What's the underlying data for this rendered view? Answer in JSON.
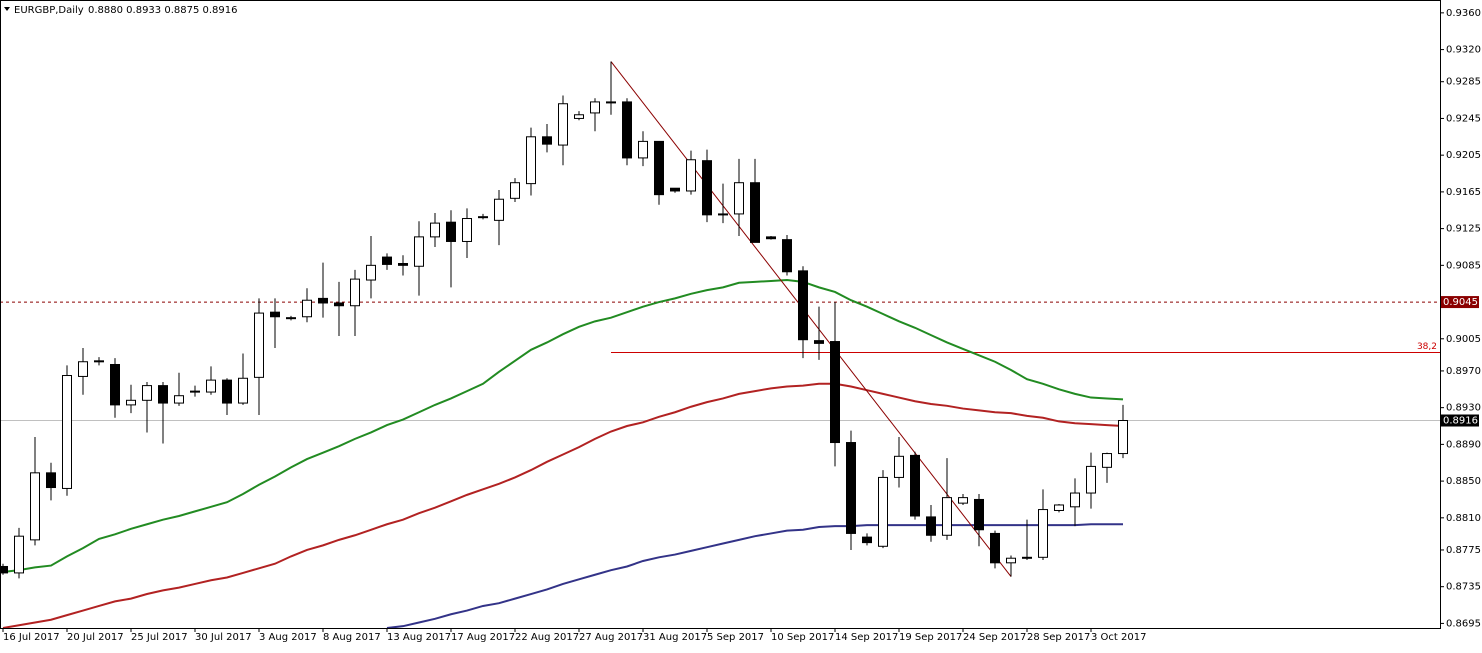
{
  "chart_data": {
    "type": "candlestick",
    "title": "EURGBP,Daily",
    "header_values": "0.8880 0.8933 0.8875 0.8916",
    "categories": [
      "16 Jul 2017",
      null,
      null,
      null,
      "20 Jul 2017",
      null,
      null,
      null,
      "25 Jul 2017",
      null,
      null,
      null,
      "30 Jul 2017",
      null,
      null,
      null,
      "3 Aug 2017",
      null,
      null,
      null,
      "8 Aug 2017",
      null,
      null,
      null,
      "13 Aug 2017",
      null,
      null,
      null,
      "17 Aug 2017",
      null,
      null,
      null,
      "22 Aug 2017",
      null,
      null,
      null,
      "27 Aug 2017",
      null,
      null,
      null,
      "31 Aug 2017",
      null,
      null,
      null,
      "5 Sep 2017",
      null,
      null,
      null,
      "10 Sep 2017",
      null,
      null,
      null,
      "14 Sep 2017",
      null,
      null,
      null,
      "19 Sep 2017",
      null,
      null,
      null,
      "24 Sep 2017",
      null,
      null,
      null,
      "28 Sep 2017",
      null,
      null,
      null,
      "3 Oct 2017",
      null,
      null
    ],
    "open": [
      0.8757,
      0.875,
      0.8786,
      0.8859,
      0.8842,
      0.8964,
      0.898,
      0.8977,
      0.8933,
      0.8938,
      0.8954,
      0.8935,
      0.8947,
      0.8947,
      0.896,
      0.8935,
      0.8963,
      0.9034,
      0.9028,
      0.9029,
      0.9049,
      0.9044,
      0.9041,
      0.9069,
      0.9094,
      0.9087,
      0.9084,
      0.9116,
      0.9132,
      0.9111,
      0.9137,
      0.9134,
      0.9158,
      0.9174,
      0.9225,
      0.9216,
      0.9245,
      0.9251,
      0.9263,
      0.9263,
      0.9202,
      0.922,
      0.9169,
      0.9166,
      0.9199,
      0.9141,
      0.9141,
      0.9175,
      0.9116,
      0.9113,
      0.9079,
      0.9003,
      0.9002,
      0.8892,
      0.8789,
      0.8779,
      0.8854,
      0.8878,
      0.8811,
      0.8791,
      0.8826,
      0.883,
      0.8793,
      0.8761,
      0.8766,
      0.8767,
      0.8818,
      0.8822,
      0.8837,
      0.8865,
      0.888
    ],
    "high": [
      0.876,
      0.8799,
      0.8898,
      0.887,
      0.8976,
      0.8995,
      0.8985,
      0.8984,
      0.8955,
      0.8958,
      0.8958,
      0.8968,
      0.8954,
      0.8975,
      0.8962,
      0.8989,
      0.9049,
      0.9049,
      0.903,
      0.906,
      0.9088,
      0.9067,
      0.908,
      0.9117,
      0.9098,
      0.9096,
      0.9133,
      0.9142,
      0.9145,
      0.9147,
      0.9141,
      0.9167,
      0.918,
      0.9235,
      0.9239,
      0.927,
      0.9253,
      0.9267,
      0.9307,
      0.9267,
      0.9231,
      0.922,
      0.9169,
      0.921,
      0.9211,
      0.9174,
      0.9201,
      0.9201,
      0.9117,
      0.9118,
      0.9084,
      0.904,
      0.9045,
      0.8905,
      0.8793,
      0.8862,
      0.8898,
      0.8882,
      0.8824,
      0.8875,
      0.8836,
      0.8836,
      0.8796,
      0.8769,
      0.8808,
      0.8841,
      0.8825,
      0.8853,
      0.8881,
      0.8881,
      0.8933
    ],
    "low": [
      0.8748,
      0.8744,
      0.878,
      0.8829,
      0.8834,
      0.8944,
      0.8976,
      0.8919,
      0.8924,
      0.8903,
      0.8891,
      0.8932,
      0.8942,
      0.8944,
      0.8922,
      0.8933,
      0.8922,
      0.8995,
      0.9025,
      0.9023,
      0.9028,
      0.9008,
      0.9008,
      0.9049,
      0.908,
      0.9074,
      0.9052,
      0.9105,
      0.9061,
      0.9093,
      0.9135,
      0.9107,
      0.9154,
      0.9161,
      0.9208,
      0.9194,
      0.9243,
      0.9231,
      0.9249,
      0.9194,
      0.9193,
      0.9151,
      0.9164,
      0.9162,
      0.9132,
      0.9131,
      0.9117,
      0.911,
      0.9113,
      0.9074,
      0.8984,
      0.8982,
      0.8866,
      0.8775,
      0.878,
      0.8777,
      0.8843,
      0.8808,
      0.8784,
      0.8786,
      0.8824,
      0.8779,
      0.8755,
      0.8746,
      0.8764,
      0.8764,
      0.8816,
      0.8801,
      0.882,
      0.8848,
      0.8875
    ],
    "close": [
      0.875,
      0.879,
      0.8859,
      0.8843,
      0.8965,
      0.898,
      0.8981,
      0.8933,
      0.8938,
      0.8954,
      0.8935,
      0.8943,
      0.8948,
      0.896,
      0.8935,
      0.8962,
      0.9033,
      0.9029,
      0.9027,
      0.9047,
      0.9044,
      0.9041,
      0.907,
      0.9085,
      0.9086,
      0.9085,
      0.9116,
      0.9131,
      0.9111,
      0.9136,
      0.9138,
      0.9157,
      0.9175,
      0.9225,
      0.9217,
      0.9261,
      0.9249,
      0.9263,
      0.9262,
      0.9202,
      0.922,
      0.9162,
      0.9166,
      0.92,
      0.914,
      0.914,
      0.9175,
      0.911,
      0.9114,
      0.9078,
      0.9004,
      0.9,
      0.8892,
      0.8793,
      0.8783,
      0.8854,
      0.8877,
      0.8812,
      0.8791,
      0.8832,
      0.8832,
      0.8797,
      0.8761,
      0.8766,
      0.8767,
      0.8819,
      0.8824,
      0.8837,
      0.8866,
      0.888,
      0.8916
    ],
    "up_color": "#ffffff",
    "down_color": "#000000",
    "moving_averages": [
      {
        "color": "#228b22",
        "values": [
          0.8751,
          0.8753,
          0.8756,
          0.8758,
          0.8768,
          0.8777,
          0.8787,
          0.8792,
          0.8798,
          0.8803,
          0.8808,
          0.8812,
          0.8817,
          0.8822,
          0.8827,
          0.8836,
          0.8846,
          0.8855,
          0.8865,
          0.8874,
          0.8881,
          0.8888,
          0.8896,
          0.8903,
          0.8911,
          0.8917,
          0.8925,
          0.8933,
          0.894,
          0.8948,
          0.8956,
          0.8969,
          0.8981,
          0.8993,
          0.9001,
          0.901,
          0.9018,
          0.9024,
          0.9028,
          0.9034,
          0.904,
          0.9045,
          0.9049,
          0.9054,
          0.9058,
          0.9061,
          0.9066,
          0.9067,
          0.9068,
          0.9069,
          0.9067,
          0.9061,
          0.9056,
          0.9047,
          0.904,
          0.9032,
          0.9024,
          0.9017,
          0.9009,
          0.9001,
          0.8994,
          0.8987,
          0.898,
          0.8971,
          0.8961,
          0.8956,
          0.895,
          0.8945,
          0.8941,
          0.894,
          0.8939
        ]
      },
      {
        "color": "#b22222",
        "values": [
          0.869,
          0.8693,
          0.8696,
          0.8699,
          0.8704,
          0.8709,
          0.8714,
          0.8719,
          0.8722,
          0.8727,
          0.8731,
          0.8734,
          0.8738,
          0.8742,
          0.8745,
          0.875,
          0.8755,
          0.876,
          0.8768,
          0.8775,
          0.878,
          0.8786,
          0.8791,
          0.8797,
          0.8803,
          0.8808,
          0.8815,
          0.8821,
          0.8828,
          0.8835,
          0.8841,
          0.8847,
          0.8854,
          0.8862,
          0.8871,
          0.8879,
          0.8887,
          0.8896,
          0.8904,
          0.891,
          0.8914,
          0.892,
          0.8925,
          0.8931,
          0.8936,
          0.894,
          0.8945,
          0.8948,
          0.8951,
          0.8953,
          0.8954,
          0.8956,
          0.8956,
          0.8953,
          0.8949,
          0.8945,
          0.8941,
          0.8937,
          0.8934,
          0.8932,
          0.8929,
          0.8927,
          0.8925,
          0.8924,
          0.8921,
          0.8919,
          0.8915,
          0.8913,
          0.8912,
          0.8911,
          0.891
        ]
      },
      {
        "color": "#333388",
        "values": [
          null,
          null,
          null,
          null,
          null,
          null,
          null,
          null,
          null,
          null,
          null,
          null,
          null,
          null,
          null,
          null,
          null,
          null,
          null,
          null,
          null,
          null,
          null,
          null,
          0.869,
          0.8692,
          0.8696,
          0.87,
          0.8705,
          0.8709,
          0.8714,
          0.8717,
          0.8722,
          0.8727,
          0.8732,
          0.8738,
          0.8743,
          0.8748,
          0.8753,
          0.8757,
          0.8763,
          0.8767,
          0.877,
          0.8774,
          0.8778,
          0.8782,
          0.8786,
          0.879,
          0.8793,
          0.8796,
          0.8797,
          0.88,
          0.8801,
          0.8801,
          0.8802,
          0.8802,
          0.8802,
          0.8802,
          0.8802,
          0.8802,
          0.8802,
          0.8802,
          0.8802,
          0.8802,
          0.8802,
          0.8802,
          0.8802,
          0.8802,
          0.8803,
          0.8803,
          0.8803
        ]
      }
    ],
    "ylim": [
      0.869,
      0.9374
    ],
    "yticks": [
      {
        "value": 0.936,
        "label": "0.9360"
      },
      {
        "value": 0.932,
        "label": "0.9320"
      },
      0.9285,
      0.9245,
      0.9205,
      0.9165,
      0.9125,
      0.9085,
      0.9005,
      {
        "value": 0.897,
        "label": "0.8970"
      },
      {
        "value": 0.893,
        "label": "0.8930"
      },
      {
        "value": 0.889,
        "label": "0.8890"
      },
      {
        "value": 0.885,
        "label": "0.8850"
      },
      {
        "value": 0.881,
        "label": "0.8810"
      },
      0.8775,
      0.8735,
      0.8695
    ],
    "hline": {
      "value": 0.9045,
      "label": "0.9045",
      "color": "#8b0000"
    },
    "price_line": {
      "value": 0.8916,
      "label": "0.8916",
      "color": "#c0c0c0"
    },
    "fib": {
      "value": 0.899,
      "label": "38,2",
      "start": 38,
      "color": "#cc0000"
    },
    "trendline": {
      "start": 38,
      "end": 63,
      "color": "#8b0000"
    },
    "grid": false
  }
}
